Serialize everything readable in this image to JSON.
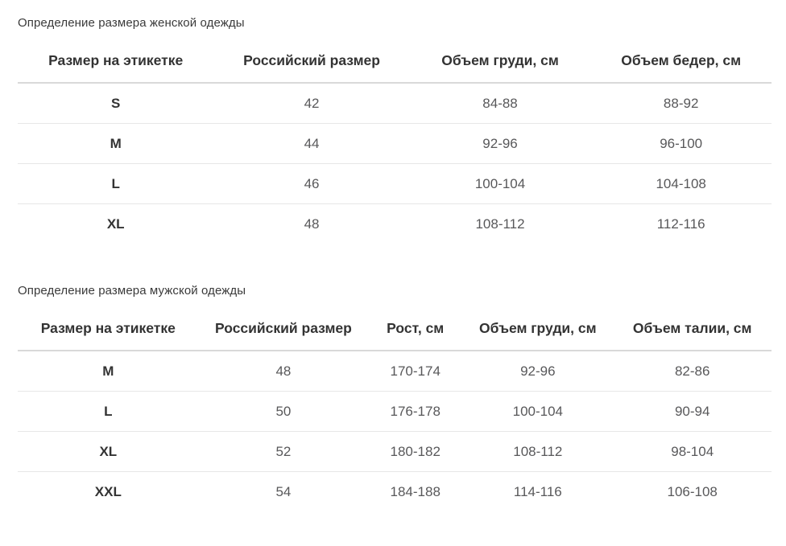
{
  "colors": {
    "background": "#ffffff",
    "title_text": "#3a3a3a",
    "header_text": "#333333",
    "cell_text": "#58585a",
    "header_border": "#d9d9d9",
    "row_border": "#e7e7e7"
  },
  "chart_data": [
    {
      "type": "table",
      "title": "Определение размера женской одежды",
      "columns": [
        "Размер на этикетке",
        "Российский размер",
        "Объем груди, см",
        "Объем бедер, см"
      ],
      "rows": [
        [
          "S",
          "42",
          "84-88",
          "88-92"
        ],
        [
          "M",
          "44",
          "92-96",
          "96-100"
        ],
        [
          "L",
          "46",
          "100-104",
          "104-108"
        ],
        [
          "XL",
          "48",
          "108-112",
          "112-116"
        ]
      ]
    },
    {
      "type": "table",
      "title": "Определение размера мужской одежды",
      "columns": [
        "Размер на этикетке",
        "Российский размер",
        "Рост, см",
        "Объем груди, см",
        "Объем талии, см"
      ],
      "rows": [
        [
          "M",
          "48",
          "170-174",
          "92-96",
          "82-86"
        ],
        [
          "L",
          "50",
          "176-178",
          "100-104",
          "90-94"
        ],
        [
          "XL",
          "52",
          "180-182",
          "108-112",
          "98-104"
        ],
        [
          "XXL",
          "54",
          "184-188",
          "114-116",
          "106-108"
        ]
      ]
    }
  ]
}
